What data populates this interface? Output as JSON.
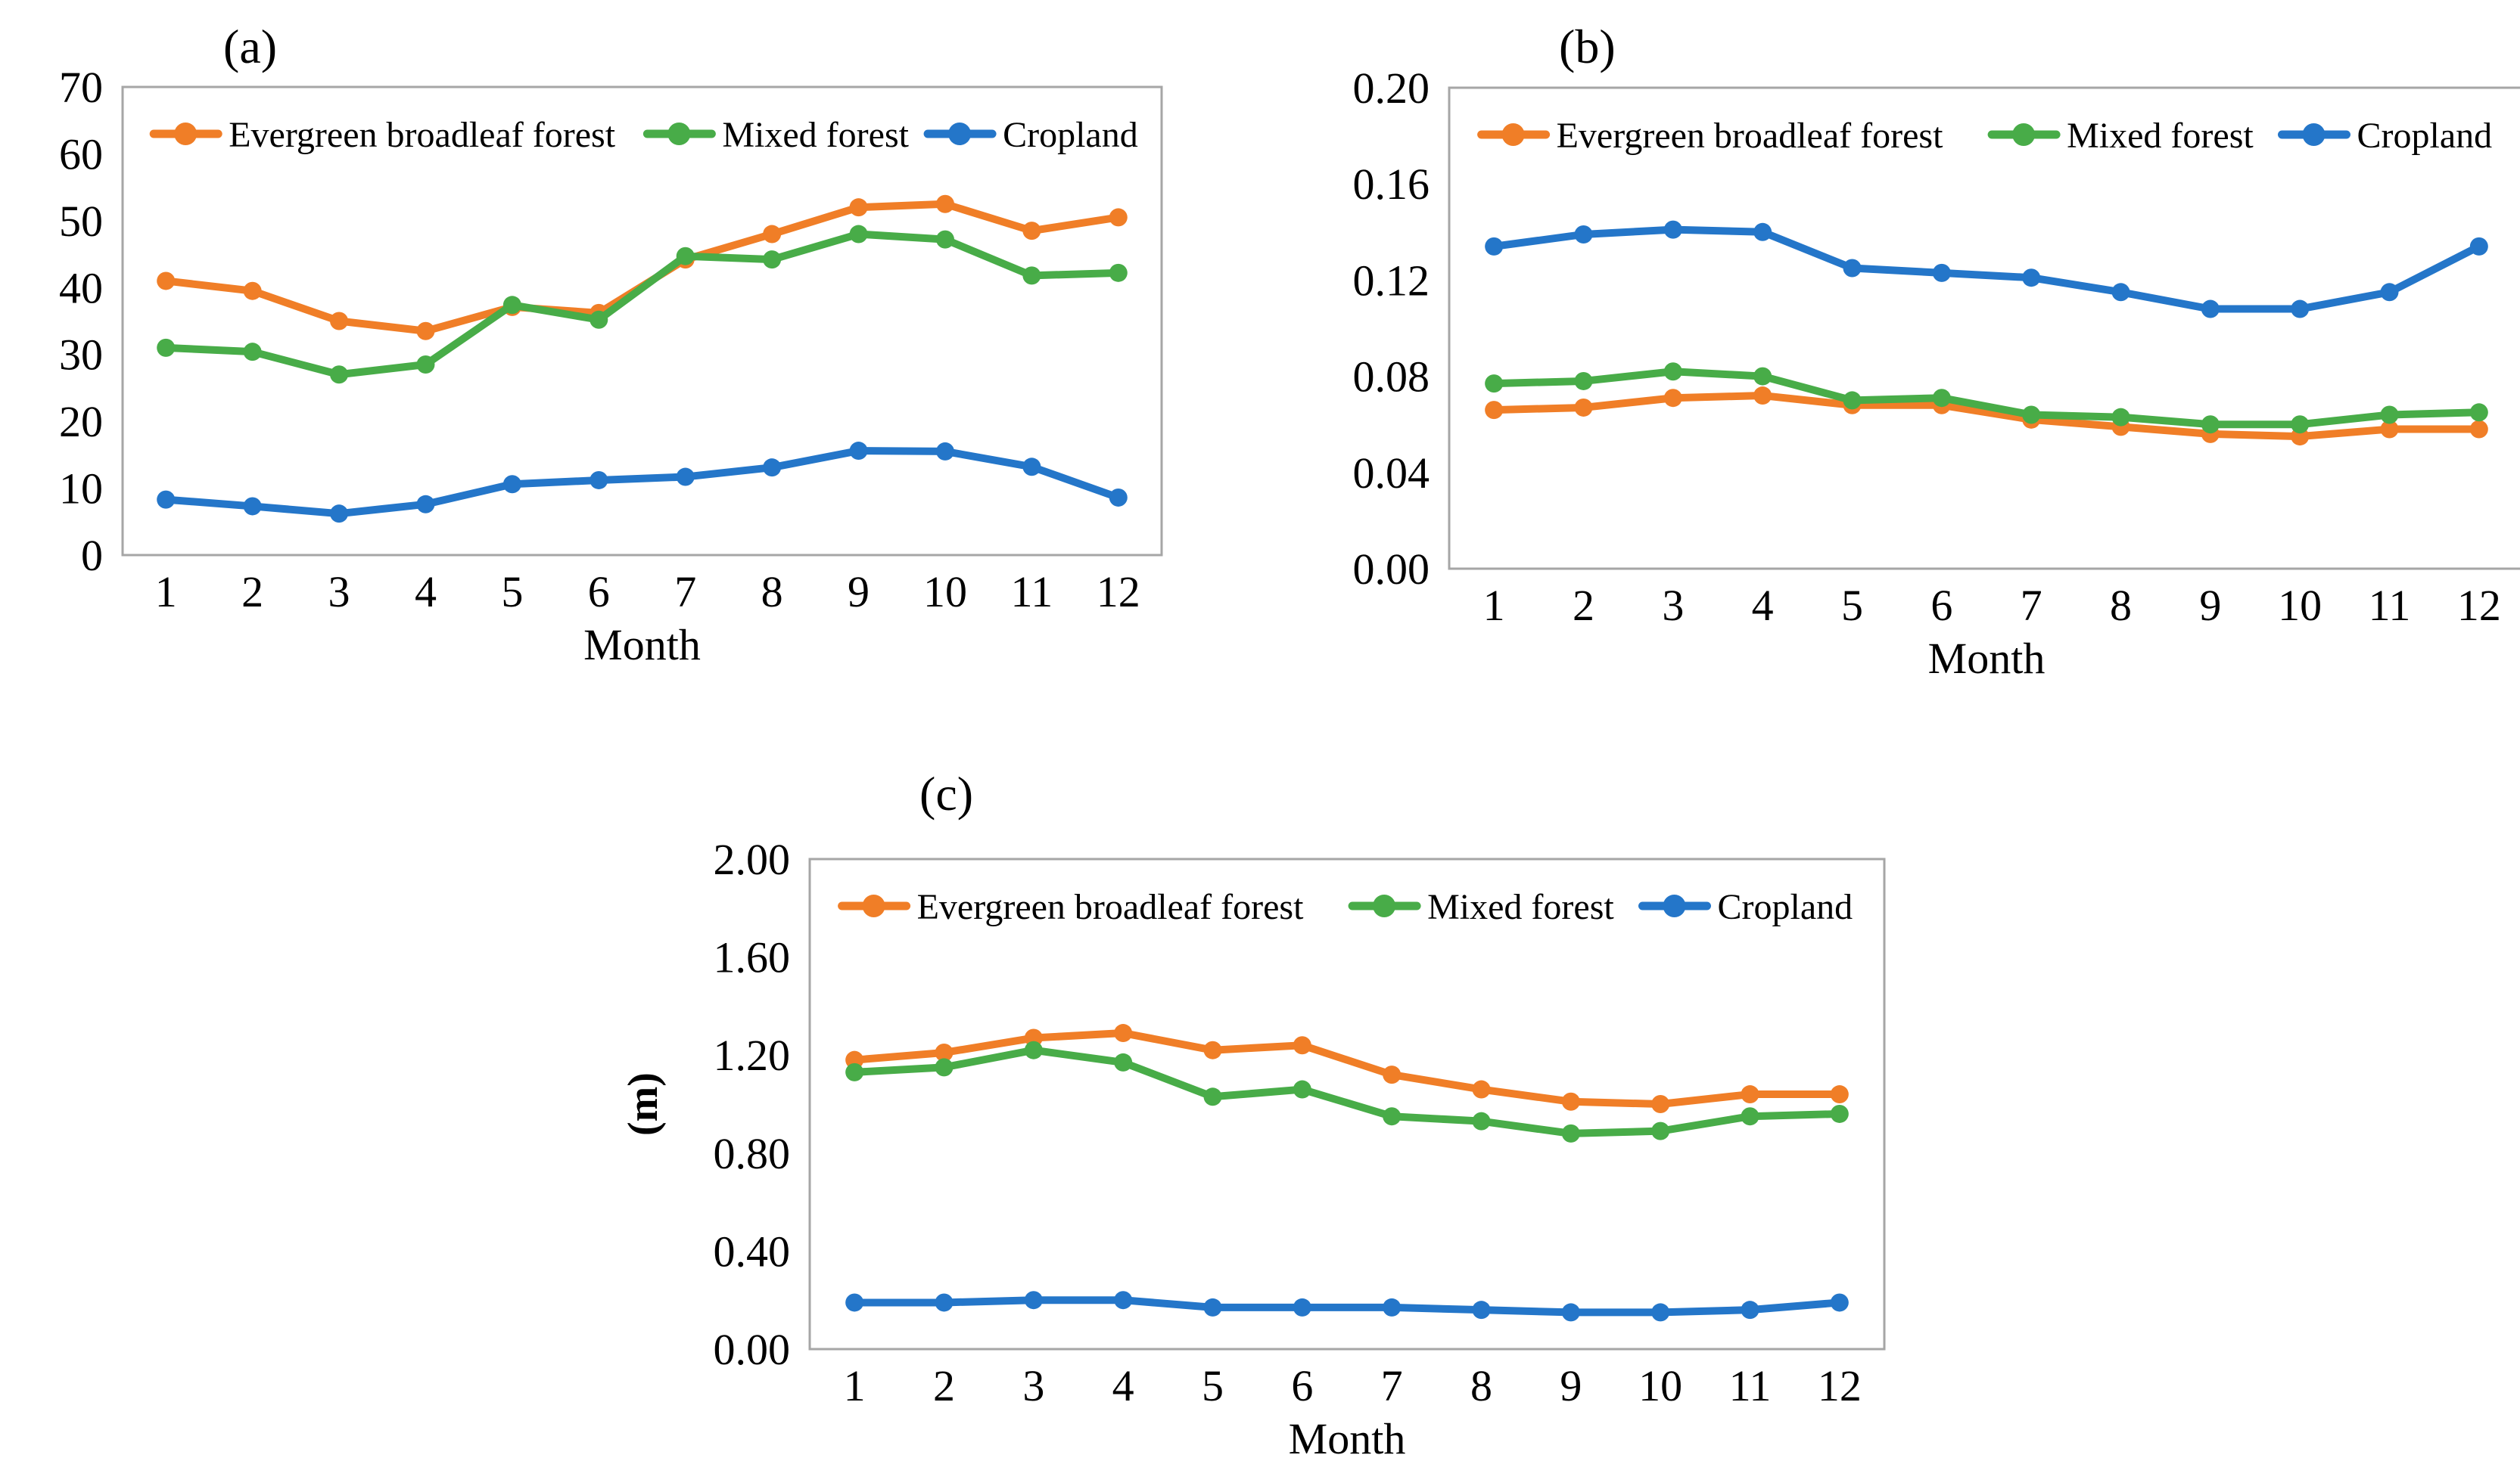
{
  "style": {
    "frame_color": "#A6A6A6",
    "text_color": "#000000",
    "background": "#FFFFFF"
  },
  "chart_data": [
    {
      "type": "line",
      "panel_label": "(a)",
      "xlabel": "Month",
      "ylabel": "",
      "categories": [
        "1",
        "2",
        "3",
        "4",
        "5",
        "6",
        "7",
        "8",
        "9",
        "10",
        "11",
        "12"
      ],
      "ylim": [
        0,
        70
      ],
      "yticks": [
        "0",
        "10",
        "20",
        "30",
        "40",
        "50",
        "60",
        "70"
      ],
      "grid": false,
      "legend_position": "top-inside",
      "series": [
        {
          "name": "Evergreen broadleaf forest",
          "color": "#F07E27",
          "values": [
            41,
            39.5,
            35,
            33.5,
            37.1,
            36.2,
            44.2,
            48,
            52,
            52.5,
            48.5,
            50.5
          ]
        },
        {
          "name": "Mixed forest",
          "color": "#48AC48",
          "values": [
            31,
            30.4,
            27,
            28.5,
            37.4,
            35.2,
            44.7,
            44.2,
            48,
            47.2,
            41.8,
            42.2
          ]
        },
        {
          "name": "Cropland",
          "color": "#2476C9",
          "values": [
            8.3,
            7.3,
            6.2,
            7.6,
            10.6,
            11.2,
            11.7,
            13.1,
            15.6,
            15.5,
            13.2,
            8.6
          ]
        }
      ]
    },
    {
      "type": "line",
      "panel_label": "(b)",
      "xlabel": "Month",
      "ylabel": "",
      "categories": [
        "1",
        "2",
        "3",
        "4",
        "5",
        "6",
        "7",
        "8",
        "9",
        "10",
        "11",
        "12"
      ],
      "ylim": [
        0,
        0.2
      ],
      "yticks": [
        "0.00",
        "0.04",
        "0.08",
        "0.12",
        "0.16",
        "0.20"
      ],
      "grid": false,
      "legend_position": "top-inside",
      "series": [
        {
          "name": "Evergreen broadleaf forest",
          "color": "#F07E27",
          "values": [
            0.066,
            0.067,
            0.071,
            0.072,
            0.068,
            0.068,
            0.062,
            0.059,
            0.056,
            0.055,
            0.058,
            0.058
          ]
        },
        {
          "name": "Mixed forest",
          "color": "#48AC48",
          "values": [
            0.077,
            0.078,
            0.082,
            0.08,
            0.07,
            0.071,
            0.064,
            0.063,
            0.06,
            0.06,
            0.064,
            0.065
          ]
        },
        {
          "name": "Cropland",
          "color": "#2476C9",
          "values": [
            0.134,
            0.139,
            0.141,
            0.14,
            0.125,
            0.123,
            0.121,
            0.115,
            0.108,
            0.108,
            0.115,
            0.134
          ]
        }
      ]
    },
    {
      "type": "line",
      "panel_label": "(c)",
      "xlabel": "Month",
      "ylabel": "(m)",
      "categories": [
        "1",
        "2",
        "3",
        "4",
        "5",
        "6",
        "7",
        "8",
        "9",
        "10",
        "11",
        "12"
      ],
      "ylim": [
        0,
        2.0
      ],
      "yticks": [
        "0.00",
        "0.40",
        "0.80",
        "1.20",
        "1.60",
        "2.00"
      ],
      "grid": false,
      "legend_position": "top-inside",
      "series": [
        {
          "name": "Evergreen broadleaf forest",
          "color": "#F07E27",
          "values": [
            1.18,
            1.21,
            1.27,
            1.29,
            1.22,
            1.24,
            1.12,
            1.06,
            1.01,
            1.0,
            1.04,
            1.04
          ]
        },
        {
          "name": "Mixed forest",
          "color": "#48AC48",
          "values": [
            1.13,
            1.15,
            1.22,
            1.17,
            1.03,
            1.06,
            0.95,
            0.93,
            0.88,
            0.89,
            0.95,
            0.96
          ]
        },
        {
          "name": "Cropland",
          "color": "#2476C9",
          "values": [
            0.19,
            0.19,
            0.2,
            0.2,
            0.17,
            0.17,
            0.17,
            0.16,
            0.15,
            0.15,
            0.16,
            0.19
          ]
        }
      ]
    }
  ]
}
